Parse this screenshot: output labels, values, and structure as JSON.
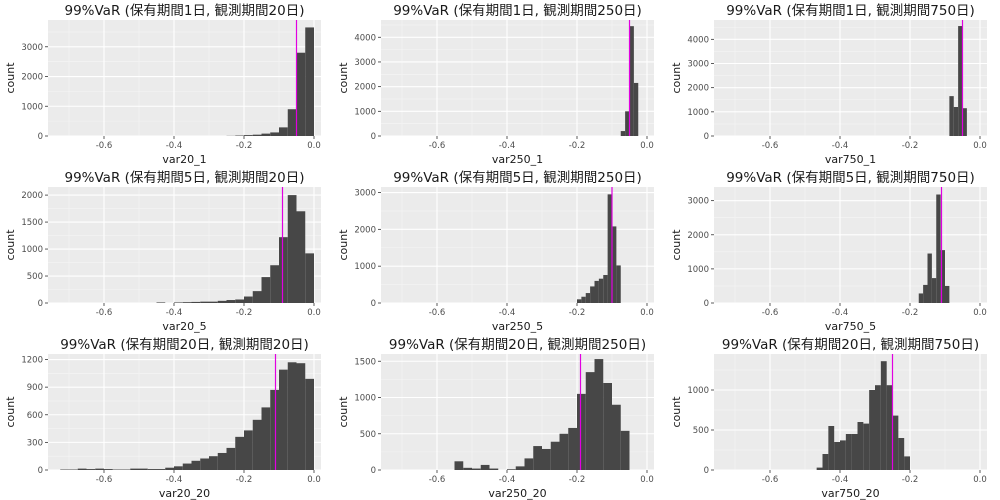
{
  "chart_data": [
    {
      "type": "histogram",
      "title": "99%VaR (保有期間1日, 観測期間20日)",
      "xlabel": "var20_1",
      "ylabel": "count",
      "xlim": [
        -0.76,
        0.02
      ],
      "ylim": [
        0,
        3900
      ],
      "xticks": [
        -0.6,
        -0.4,
        -0.2,
        0.0
      ],
      "xtick_labels": [
        "-0.6",
        "-0.4",
        "-0.2",
        "0.0"
      ],
      "yticks": [
        0,
        1000,
        2000,
        3000
      ],
      "ytick_labels": [
        "0",
        "1000",
        "2000",
        "3000"
      ],
      "bin_width": 0.025,
      "bin_starts": [
        -0.25,
        -0.225,
        -0.2,
        -0.175,
        -0.15,
        -0.125,
        -0.1,
        -0.075,
        -0.05,
        -0.025
      ],
      "counts": [
        5,
        15,
        30,
        45,
        80,
        120,
        290,
        900,
        2800,
        3650
      ],
      "vline_x": -0.05,
      "bar_color": "#474747",
      "vline_color": "#e100e1",
      "panel_bg": "#ebebeb",
      "grid": true
    },
    {
      "type": "histogram",
      "title": "99%VaR (保有期間1日, 観測期間250日)",
      "xlabel": "var250_1",
      "ylabel": "count",
      "xlim": [
        -0.76,
        0.02
      ],
      "ylim": [
        0,
        4700
      ],
      "xticks": [
        -0.6,
        -0.4,
        -0.2,
        0.0
      ],
      "xtick_labels": [
        "-0.6",
        "-0.4",
        "-0.2",
        "0.0"
      ],
      "yticks": [
        0,
        1000,
        2000,
        3000,
        4000
      ],
      "ytick_labels": [
        "0",
        "1000",
        "2000",
        "3000",
        "4000"
      ],
      "bin_width": 0.0125,
      "bin_starts": [
        -0.1125,
        -0.1,
        -0.0875,
        -0.075,
        -0.0625,
        -0.05,
        -0.0375,
        -0.025
      ],
      "counts": [
        0,
        0,
        0,
        200,
        1000,
        4450,
        2150,
        0
      ],
      "vline_x": -0.05,
      "bar_color": "#474747",
      "vline_color": "#e100e1",
      "panel_bg": "#ebebeb",
      "grid": true
    },
    {
      "type": "histogram",
      "title": "99%VaR (保有期間1日, 観測期間750日)",
      "xlabel": "var750_1",
      "ylabel": "count",
      "xlim": [
        -0.76,
        0.02
      ],
      "ylim": [
        0,
        4800
      ],
      "xticks": [
        -0.6,
        -0.4,
        -0.2,
        0.0
      ],
      "xtick_labels": [
        "-0.6",
        "-0.4",
        "-0.2",
        "0.0"
      ],
      "yticks": [
        0,
        1000,
        2000,
        3000,
        4000
      ],
      "ytick_labels": [
        "0",
        "1000",
        "2000",
        "3000",
        "4000"
      ],
      "bin_width": 0.0125,
      "bin_starts": [
        -0.1,
        -0.0875,
        -0.075,
        -0.0625,
        -0.05,
        -0.0375
      ],
      "counts": [
        0,
        1650,
        1200,
        4550,
        1150,
        0
      ],
      "vline_x": -0.05,
      "bar_color": "#474747",
      "vline_color": "#e100e1",
      "panel_bg": "#ebebeb",
      "grid": true
    },
    {
      "type": "histogram",
      "title": "99%VaR (保有期間5日, 観測期間20日)",
      "xlabel": "var20_5",
      "ylabel": "count",
      "xlim": [
        -0.76,
        0.02
      ],
      "ylim": [
        0,
        2150
      ],
      "xticks": [
        -0.6,
        -0.4,
        -0.2,
        0.0
      ],
      "xtick_labels": [
        "-0.6",
        "-0.4",
        "-0.2",
        "0.0"
      ],
      "yticks": [
        0,
        500,
        1000,
        1500,
        2000
      ],
      "ytick_labels": [
        "0",
        "500",
        "1000",
        "1500",
        "2000"
      ],
      "bin_width": 0.025,
      "bin_starts": [
        -0.45,
        -0.425,
        -0.4,
        -0.375,
        -0.35,
        -0.325,
        -0.3,
        -0.275,
        -0.25,
        -0.225,
        -0.2,
        -0.175,
        -0.15,
        -0.125,
        -0.1,
        -0.075,
        -0.05,
        -0.025
      ],
      "counts": [
        10,
        0,
        10,
        15,
        20,
        25,
        25,
        40,
        55,
        65,
        120,
        220,
        480,
        700,
        1220,
        2000,
        1700,
        920
      ],
      "vline_x": -0.09,
      "bar_color": "#474747",
      "vline_color": "#e100e1",
      "panel_bg": "#ebebeb",
      "grid": true
    },
    {
      "type": "histogram",
      "title": "99%VaR (保有期間5日, 観測期間250日)",
      "xlabel": "var250_5",
      "ylabel": "count",
      "xlim": [
        -0.76,
        0.02
      ],
      "ylim": [
        0,
        3150
      ],
      "xticks": [
        -0.6,
        -0.4,
        -0.2,
        0.0
      ],
      "xtick_labels": [
        "-0.6",
        "-0.4",
        "-0.2",
        "0.0"
      ],
      "yticks": [
        0,
        1000,
        2000,
        3000
      ],
      "ytick_labels": [
        "0",
        "1000",
        "2000",
        "3000"
      ],
      "bin_width": 0.0125,
      "bin_starts": [
        -0.2125,
        -0.2,
        -0.1875,
        -0.175,
        -0.1625,
        -0.15,
        -0.1375,
        -0.125,
        -0.1125,
        -0.1,
        -0.0875,
        -0.075
      ],
      "counts": [
        0,
        100,
        170,
        270,
        450,
        600,
        660,
        760,
        2950,
        2080,
        1020,
        0
      ],
      "vline_x": -0.1,
      "bar_color": "#474747",
      "vline_color": "#e100e1",
      "panel_bg": "#ebebeb",
      "grid": true
    },
    {
      "type": "histogram",
      "title": "99%VaR (保有期間5日, 観測期間750日)",
      "xlabel": "var750_5",
      "ylabel": "count",
      "xlim": [
        -0.76,
        0.02
      ],
      "ylim": [
        0,
        3400
      ],
      "xticks": [
        -0.6,
        -0.4,
        -0.2,
        0.0
      ],
      "xtick_labels": [
        "-0.6",
        "-0.4",
        "-0.2",
        "0.0"
      ],
      "yticks": [
        0,
        1000,
        2000,
        3000
      ],
      "ytick_labels": [
        "0",
        "1000",
        "2000",
        "3000"
      ],
      "bin_width": 0.0125,
      "bin_starts": [
        -0.1875,
        -0.175,
        -0.1625,
        -0.15,
        -0.1375,
        -0.125,
        -0.1125,
        -0.1,
        -0.0875,
        -0.075,
        -0.0625
      ],
      "counts": [
        0,
        280,
        530,
        1450,
        730,
        3180,
        1550,
        500,
        0,
        0,
        0
      ],
      "vline_x": -0.11,
      "bar_color": "#474747",
      "vline_color": "#e100e1",
      "panel_bg": "#ebebeb",
      "grid": true
    },
    {
      "type": "histogram",
      "title": "99%VaR (保有期間20日, 観測期間20日)",
      "xlabel": "var20_20",
      "ylabel": "count",
      "xlim": [
        -0.76,
        0.02
      ],
      "ylim": [
        0,
        1260
      ],
      "xticks": [
        -0.6,
        -0.4,
        -0.2,
        0.0
      ],
      "xtick_labels": [
        "-0.6",
        "-0.4",
        "-0.2",
        "0.0"
      ],
      "yticks": [
        0,
        300,
        600,
        900,
        1200
      ],
      "ytick_labels": [
        "0",
        "300",
        "600",
        "900",
        "1200"
      ],
      "bin_width": 0.025,
      "bin_starts": [
        -0.725,
        -0.7,
        -0.675,
        -0.65,
        -0.625,
        -0.6,
        -0.575,
        -0.55,
        -0.525,
        -0.5,
        -0.475,
        -0.45,
        -0.425,
        -0.4,
        -0.375,
        -0.35,
        -0.325,
        -0.3,
        -0.275,
        -0.25,
        -0.225,
        -0.2,
        -0.175,
        -0.15,
        -0.125,
        -0.1,
        -0.075,
        -0.05,
        -0.025
      ],
      "counts": [
        5,
        5,
        15,
        10,
        15,
        10,
        5,
        5,
        15,
        15,
        10,
        10,
        25,
        40,
        70,
        100,
        125,
        150,
        185,
        240,
        360,
        430,
        545,
        680,
        870,
        1090,
        1170,
        1160,
        990
      ],
      "vline_x": -0.11,
      "bar_color": "#474747",
      "vline_color": "#e100e1",
      "panel_bg": "#ebebeb",
      "grid": true
    },
    {
      "type": "histogram",
      "title": "99%VaR (保有期間20日, 観測期間250日)",
      "xlabel": "var250_20",
      "ylabel": "count",
      "xlim": [
        -0.76,
        0.02
      ],
      "ylim": [
        0,
        1600
      ],
      "xticks": [
        -0.6,
        -0.4,
        -0.2,
        0.0
      ],
      "xtick_labels": [
        "-0.6",
        "-0.4",
        "-0.2",
        "0.0"
      ],
      "yticks": [
        0,
        500,
        1000,
        1500
      ],
      "ytick_labels": [
        "0",
        "500",
        "1000",
        "1500"
      ],
      "bin_width": 0.025,
      "bin_starts": [
        -0.55,
        -0.525,
        -0.5,
        -0.475,
        -0.45,
        -0.425,
        -0.4,
        -0.375,
        -0.35,
        -0.325,
        -0.3,
        -0.275,
        -0.25,
        -0.225,
        -0.2,
        -0.175,
        -0.15,
        -0.125,
        -0.1,
        -0.075,
        -0.05
      ],
      "counts": [
        120,
        30,
        20,
        70,
        20,
        0,
        10,
        50,
        160,
        330,
        290,
        390,
        500,
        580,
        1050,
        1350,
        1530,
        1200,
        900,
        540,
        0
      ],
      "vline_x": -0.19,
      "bar_color": "#474747",
      "vline_color": "#e100e1",
      "panel_bg": "#ebebeb",
      "grid": true
    },
    {
      "type": "histogram",
      "title": "99%VaR (保有期間20日, 観測期間750日)",
      "xlabel": "var750_20",
      "ylabel": "count",
      "xlim": [
        -0.76,
        0.02
      ],
      "ylim": [
        0,
        1450
      ],
      "xticks": [
        -0.6,
        -0.4,
        -0.2,
        0.0
      ],
      "xtick_labels": [
        "-0.6",
        "-0.4",
        "-0.2",
        "0.0"
      ],
      "yticks": [
        0,
        500,
        1000
      ],
      "ytick_labels": [
        "0",
        "500",
        "1000"
      ],
      "bin_width": 0.0167,
      "bin_starts": [
        -0.4667,
        -0.45,
        -0.4333,
        -0.4167,
        -0.4,
        -0.3833,
        -0.3667,
        -0.35,
        -0.3333,
        -0.3167,
        -0.3,
        -0.2833,
        -0.2667,
        -0.25,
        -0.2333,
        -0.2167,
        -0.2,
        -0.1833,
        -0.1667,
        -0.15,
        -0.1333,
        -0.1167
      ],
      "counts": [
        30,
        200,
        550,
        350,
        370,
        450,
        450,
        600,
        580,
        1000,
        1060,
        1360,
        1060,
        680,
        400,
        170,
        0,
        0,
        0,
        0,
        0,
        0
      ],
      "vline_x": -0.25,
      "bar_color": "#474747",
      "vline_color": "#e100e1",
      "panel_bg": "#ebebeb",
      "grid": true
    }
  ]
}
